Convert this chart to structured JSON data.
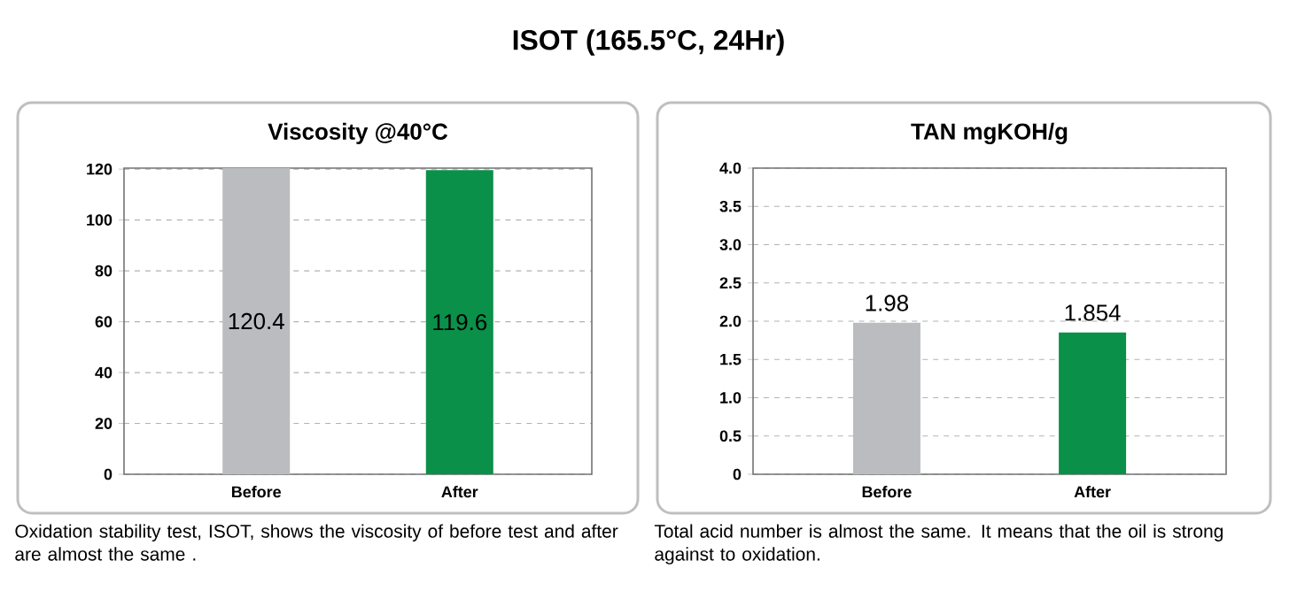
{
  "chart_data": [
    {
      "type": "other",
      "title": "ISOT (165.5°C, 24Hr)"
    },
    {
      "type": "bar",
      "title": "Viscosity @40°C",
      "categories": [
        "Before",
        "After"
      ],
      "values": [
        120.4,
        119.6
      ],
      "colors": [
        "#bbbcc0",
        "#0a9048"
      ],
      "ylim": [
        0,
        120.4
      ],
      "yticks": [
        0,
        20,
        40,
        60,
        80,
        100,
        120
      ],
      "grid": "y",
      "data_labels": true,
      "annotations": [
        "Oxidation stability test, ISOT, shows the viscosity of before test and after are almost the same ."
      ]
    },
    {
      "type": "bar",
      "title": "TAN  mgKOH/g",
      "categories": [
        "Before",
        "After"
      ],
      "values": [
        1.98,
        1.854
      ],
      "colors": [
        "#bbbcc0",
        "#0a9048"
      ],
      "ylim": [
        0,
        4.0
      ],
      "yticks": [
        0,
        {
          "value": 0.5,
          "label": "0.5"
        },
        {
          "value": 1,
          "label": "1.0"
        },
        {
          "value": 1.5,
          "label": "1.5"
        },
        {
          "value": 2,
          "label": "2.0"
        },
        {
          "value": 2.5,
          "label": "2.5"
        },
        {
          "value": 3,
          "label": "3.0"
        },
        {
          "value": 3.5,
          "label": "3.5"
        },
        {
          "value": 4,
          "label": "4.0"
        }
      ],
      "grid": "y",
      "data_labels": true,
      "annotations": [
        "Total acid number is almost the same. It means that the oil is strong against to oxidation."
      ]
    }
  ]
}
